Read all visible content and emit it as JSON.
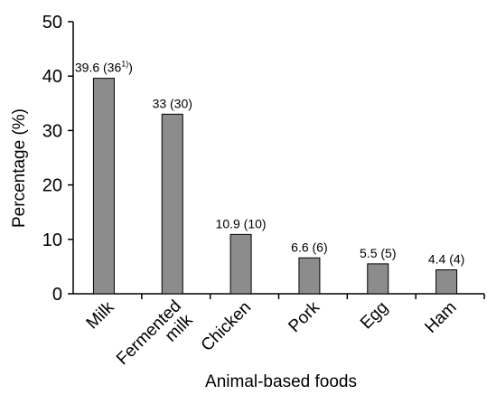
{
  "chart_data": {
    "type": "bar",
    "categories": [
      "Milk",
      "Fermented milk",
      "Chicken",
      "Pork",
      "Egg",
      "Ham"
    ],
    "category_lines": [
      [
        "Milk"
      ],
      [
        "Fermented",
        "milk"
      ],
      [
        "Chicken"
      ],
      [
        "Pork"
      ],
      [
        "Egg"
      ],
      [
        "Ham"
      ]
    ],
    "values": [
      39.6,
      33,
      10.9,
      6.6,
      5.5,
      4.4
    ],
    "data_labels": [
      {
        "main": "39.6 (36",
        "sup": "1)",
        "tail": ")"
      },
      {
        "main": "33 (30)",
        "sup": "",
        "tail": ""
      },
      {
        "main": "10.9 (10)",
        "sup": "",
        "tail": ""
      },
      {
        "main": "6.6 (6)",
        "sup": "",
        "tail": ""
      },
      {
        "main": "5.5 (5)",
        "sup": "",
        "tail": ""
      },
      {
        "main": "4.4 (4)",
        "sup": "",
        "tail": ""
      }
    ],
    "xlabel": "Animal-based foods",
    "ylabel": "Percentage (%)",
    "ylim": [
      0,
      50
    ],
    "yticks": [
      0,
      10,
      20,
      30,
      40,
      50
    ],
    "grid": false,
    "colors": {
      "bar": "#8c8c8c",
      "axis": "#000000"
    }
  }
}
